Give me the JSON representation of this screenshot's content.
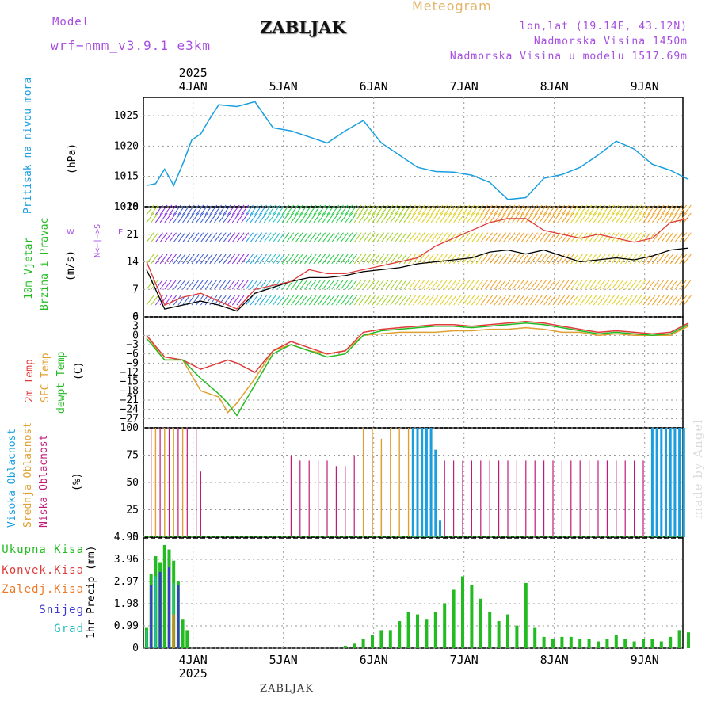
{
  "header": {
    "title": "ZABLJAK",
    "meteogram": "Meteogram",
    "model_label": "Model",
    "model_value": "wrf−nmm_v3.9.1 e3km",
    "lonlat": "lon,lat (19.14E, 43.12N)",
    "altitude": "Nadmorska Visina 1450m",
    "model_altitude": "Nadmorska Visina u modelu 1517.69m",
    "bottom_name": "ZABLJAK",
    "made_by": "made by Angel"
  },
  "colors": {
    "pressure": "#1a9ee0",
    "wind_label": "#22bb22",
    "temp2m": "#e03a3a",
    "sfc": "#e0a030",
    "dewpt": "#22bb22",
    "high_cloud": "#1a9ee0",
    "mid_cloud": "#e0a030",
    "low_cloud": "#c01a7a",
    "total_precip": "#22bb22",
    "conv_precip": "#e03a3a",
    "frz_precip": "#ee7722",
    "snow": "#3a3ad0",
    "hail": "#22bbbb",
    "purple": "#a64ee0"
  },
  "chart_data": [
    {
      "type": "line",
      "panel": "pressure",
      "ylabel_main": "Pritisak na nivou mora",
      "ylabel_unit": "(hPa)",
      "yticks": [
        "1025",
        "1020",
        "1015",
        "1010"
      ],
      "ylim": [
        1010,
        1028
      ],
      "x_days": [
        0,
        0.1,
        0.2,
        0.3,
        0.4,
        0.5,
        0.6,
        0.7,
        0.8,
        1.0,
        1.2,
        1.4,
        1.6,
        1.8,
        2.0,
        2.2,
        2.4,
        2.6,
        2.8,
        3.0,
        3.2,
        3.4,
        3.6,
        3.8,
        4.0,
        4.2,
        4.4,
        4.6,
        4.8,
        5.0,
        5.2,
        5.4,
        5.6,
        5.8,
        6.0
      ],
      "values": [
        1013.5,
        1013.8,
        1016.2,
        1013.5,
        1017,
        1021,
        1022,
        1024.5,
        1026.8,
        1026.5,
        1027.3,
        1023,
        1022.5,
        1021.5,
        1020.5,
        1022.5,
        1024.2,
        1020.5,
        1018.5,
        1016.5,
        1015.8,
        1015.7,
        1015.2,
        1014,
        1011.2,
        1011.5,
        1014.7,
        1015.3,
        1016.5,
        1018.5,
        1020.8,
        1019.5,
        1017,
        1016,
        1014.5
      ]
    },
    {
      "type": "line",
      "panel": "wind",
      "ylabel_main1": "10m Vjetar",
      "ylabel_main2": "Brzina i Pravac",
      "ylabel_unit": "(m/s)",
      "compass_ns": "N<−|−>S",
      "compass_we": "W",
      "compass_e": "E",
      "yticks": [
        "28",
        "21",
        "14",
        "7",
        "0"
      ],
      "ylim": [
        0,
        28
      ],
      "x_days": [
        0,
        0.2,
        0.4,
        0.6,
        0.8,
        1.0,
        1.2,
        1.4,
        1.6,
        1.8,
        2.0,
        2.2,
        2.4,
        2.6,
        2.8,
        3.0,
        3.2,
        3.4,
        3.6,
        3.8,
        4.0,
        4.2,
        4.4,
        4.6,
        4.8,
        5.0,
        5.2,
        5.4,
        5.6,
        5.8,
        6.0
      ],
      "speed": [
        12,
        2,
        3,
        4,
        3,
        1.5,
        6,
        7.5,
        9,
        10,
        10,
        10.5,
        11.5,
        12,
        12.5,
        13.5,
        14,
        14.5,
        15,
        16.5,
        17,
        16,
        17,
        15.5,
        14,
        14.5,
        15,
        14.5,
        15.5,
        17,
        17.5
      ],
      "gust": [
        14,
        3,
        5,
        6,
        4,
        2,
        7,
        8,
        9,
        12,
        11,
        11,
        12,
        13,
        14,
        15,
        18,
        20,
        22,
        24,
        25,
        25,
        22,
        21,
        20,
        21,
        20,
        19,
        20,
        24,
        25
      ]
    },
    {
      "type": "line",
      "panel": "temperature",
      "ylabel_main1": "2m Temp",
      "ylabel_main2": "SFC Temp",
      "ylabel_main3": "dewpt Temp",
      "ylabel_unit": "(C)",
      "yticks": [
        "6",
        "3",
        "0",
        "−3",
        "−6",
        "−9",
        "−12",
        "−15",
        "−18",
        "−21",
        "−24",
        "−27"
      ],
      "ylim": [
        -30,
        6
      ],
      "x_days": [
        0,
        0.2,
        0.4,
        0.6,
        0.8,
        0.9,
        1.0,
        1.2,
        1.4,
        1.6,
        1.8,
        2.0,
        2.2,
        2.4,
        2.6,
        2.8,
        3.0,
        3.2,
        3.4,
        3.6,
        3.8,
        4.0,
        4.2,
        4.4,
        4.6,
        4.8,
        5.0,
        5.2,
        5.4,
        5.6,
        5.8,
        6.0
      ],
      "temp2m": [
        0,
        -7,
        -8,
        -11,
        -9,
        -8,
        -9,
        -12,
        -5,
        -2,
        -4,
        -6,
        -5,
        1,
        2,
        2.5,
        3,
        3.5,
        3.5,
        3,
        3.5,
        4,
        4.5,
        4,
        3,
        2,
        1,
        1.5,
        1,
        0.5,
        1,
        4
      ],
      "sfc": [
        0,
        -8,
        -8,
        -18,
        -20,
        -25,
        -22,
        -14,
        -5,
        -3,
        -5,
        -6,
        -5,
        0,
        0.5,
        1,
        1,
        1,
        1.5,
        1.5,
        2,
        2,
        2.5,
        2,
        1,
        1,
        0,
        0.5,
        0,
        0,
        0,
        3
      ],
      "dewpt": [
        -1,
        -8,
        -8,
        -14,
        -19,
        -22,
        -26,
        -16,
        -6,
        -3,
        -5,
        -7,
        -6,
        0,
        1.5,
        2,
        2.5,
        3,
        3,
        2.5,
        3,
        3.5,
        4,
        3.5,
        2.5,
        1.5,
        0.5,
        1,
        0.5,
        0,
        0.5,
        3.5
      ]
    },
    {
      "type": "bar",
      "panel": "cloud",
      "ylabel_main1": "Visoka Oblacnost",
      "ylabel_main2": "Srednja Oblacnost",
      "ylabel_main3": "Niska Oblacnost",
      "ylabel_unit": "(%)",
      "yticks": [
        "100",
        "75",
        "50",
        "25",
        "0"
      ],
      "ylim": [
        0,
        100
      ],
      "high": [
        [
          2.95,
          100
        ],
        [
          3.0,
          100
        ],
        [
          3.05,
          100
        ],
        [
          3.1,
          100
        ],
        [
          3.15,
          100
        ],
        [
          3.2,
          80
        ],
        [
          3.25,
          15
        ],
        [
          5.6,
          100
        ],
        [
          5.65,
          100
        ],
        [
          5.7,
          100
        ],
        [
          5.75,
          100
        ],
        [
          5.8,
          100
        ],
        [
          5.85,
          100
        ],
        [
          5.9,
          100
        ],
        [
          5.95,
          100
        ]
      ],
      "mid": [
        [
          0.1,
          100
        ],
        [
          0.2,
          100
        ],
        [
          0.3,
          100
        ],
        [
          0.4,
          100
        ],
        [
          2.4,
          100
        ],
        [
          2.5,
          100
        ],
        [
          2.6,
          90
        ],
        [
          2.7,
          100
        ],
        [
          2.8,
          100
        ],
        [
          2.9,
          100
        ],
        [
          5.85,
          100
        ],
        [
          5.95,
          100
        ]
      ],
      "low": [
        [
          0.05,
          100
        ],
        [
          0.15,
          100
        ],
        [
          0.25,
          100
        ],
        [
          0.35,
          100
        ],
        [
          0.45,
          100
        ],
        [
          0.55,
          100
        ],
        [
          0.6,
          60
        ],
        [
          1.6,
          75
        ],
        [
          1.7,
          70
        ],
        [
          1.8,
          70
        ],
        [
          1.9,
          70
        ],
        [
          2.0,
          70
        ],
        [
          2.1,
          65
        ],
        [
          2.2,
          65
        ],
        [
          2.3,
          75
        ],
        [
          2.4,
          75
        ],
        [
          2.5,
          75
        ],
        [
          2.6,
          75
        ],
        [
          3.3,
          70
        ],
        [
          3.4,
          70
        ],
        [
          3.5,
          70
        ],
        [
          3.6,
          70
        ],
        [
          3.7,
          70
        ],
        [
          3.8,
          70
        ],
        [
          3.9,
          70
        ],
        [
          4.0,
          70
        ],
        [
          4.1,
          70
        ],
        [
          4.2,
          70
        ],
        [
          4.3,
          70
        ],
        [
          4.4,
          70
        ],
        [
          4.5,
          70
        ],
        [
          4.6,
          70
        ],
        [
          4.7,
          70
        ],
        [
          4.8,
          70
        ],
        [
          4.9,
          70
        ],
        [
          5.0,
          70
        ],
        [
          5.1,
          70
        ],
        [
          5.2,
          70
        ],
        [
          5.3,
          70
        ],
        [
          5.4,
          70
        ],
        [
          5.5,
          70
        ]
      ]
    },
    {
      "type": "bar",
      "panel": "precip",
      "legend_total": "Ukupna Kisa",
      "legend_conv": "Konvek.Kisa",
      "legend_frz": "Zaledj.Kisa",
      "legend_snow": "Snijeg",
      "legend_hail": "Grad",
      "ylabel_unit": "1hr Precip (mm)",
      "yticks": [
        "4.95",
        "3.96",
        "2.97",
        "1.98",
        "0.99",
        "0"
      ],
      "ylim": [
        0,
        4.95
      ],
      "total": [
        [
          0.0,
          0.9
        ],
        [
          0.05,
          3.3
        ],
        [
          0.1,
          4.1
        ],
        [
          0.15,
          3.8
        ],
        [
          0.2,
          4.6
        ],
        [
          0.25,
          4.4
        ],
        [
          0.3,
          3.9
        ],
        [
          0.35,
          3.0
        ],
        [
          0.4,
          1.3
        ],
        [
          0.45,
          0.8
        ],
        [
          2.2,
          0.1
        ],
        [
          2.3,
          0.2
        ],
        [
          2.4,
          0.4
        ],
        [
          2.5,
          0.6
        ],
        [
          2.6,
          0.8
        ],
        [
          2.7,
          0.8
        ],
        [
          2.8,
          1.2
        ],
        [
          2.9,
          1.6
        ],
        [
          3.0,
          1.5
        ],
        [
          3.1,
          1.3
        ],
        [
          3.2,
          1.6
        ],
        [
          3.3,
          2.0
        ],
        [
          3.4,
          2.6
        ],
        [
          3.5,
          3.2
        ],
        [
          3.6,
          2.8
        ],
        [
          3.7,
          2.2
        ],
        [
          3.8,
          1.6
        ],
        [
          3.9,
          1.2
        ],
        [
          4.0,
          1.5
        ],
        [
          4.1,
          1.0
        ],
        [
          4.2,
          2.9
        ],
        [
          4.3,
          0.9
        ],
        [
          4.4,
          0.5
        ],
        [
          4.5,
          0.4
        ],
        [
          4.6,
          0.5
        ],
        [
          4.7,
          0.5
        ],
        [
          4.8,
          0.4
        ],
        [
          4.9,
          0.4
        ],
        [
          5.0,
          0.3
        ],
        [
          5.1,
          0.4
        ],
        [
          5.2,
          0.6
        ],
        [
          5.3,
          0.4
        ],
        [
          5.4,
          0.3
        ],
        [
          5.5,
          0.4
        ],
        [
          5.6,
          0.4
        ],
        [
          5.7,
          0.3
        ],
        [
          5.8,
          0.5
        ],
        [
          5.9,
          0.8
        ],
        [
          6.0,
          0.7
        ]
      ],
      "snow": [
        [
          0.05,
          2.8
        ],
        [
          0.15,
          3.4
        ],
        [
          0.25,
          3.6
        ],
        [
          0.35,
          2.8
        ]
      ],
      "hail": [
        [
          0.0,
          0.8
        ],
        [
          0.1,
          3.2
        ],
        [
          0.3,
          2.9
        ]
      ],
      "frz": [
        [
          0.3,
          1.5
        ]
      ]
    }
  ],
  "xaxis": {
    "year": "2025",
    "days": [
      "4JAN",
      "5JAN",
      "6JAN",
      "7JAN",
      "8JAN",
      "9JAN"
    ]
  }
}
